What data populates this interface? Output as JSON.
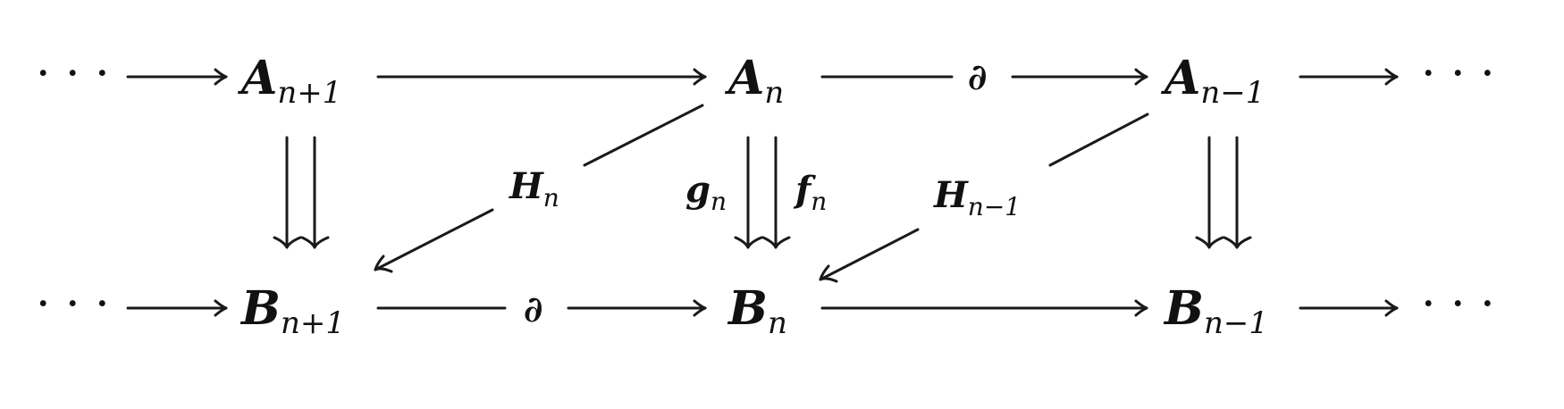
{
  "diagram": {
    "top_row": {
      "left_dots": "· · ·",
      "a_n_plus_1": {
        "base": "A",
        "sub": "n+1"
      },
      "a_n": {
        "base": "A",
        "sub": "n"
      },
      "a_n_minus_1": {
        "base": "A",
        "sub": "n−1"
      },
      "right_dots": "· · ·"
    },
    "bottom_row": {
      "left_dots": "· · ·",
      "b_n_plus_1": {
        "base": "B",
        "sub": "n+1"
      },
      "b_n": {
        "base": "B",
        "sub": "n"
      },
      "b_n_minus_1": {
        "base": "B",
        "sub": "n−1"
      },
      "right_dots": "· · ·"
    },
    "labels": {
      "boundary_top": "∂",
      "boundary_bottom": "∂",
      "h_n": {
        "base": "H",
        "sub": "n"
      },
      "h_n_minus_1": {
        "base": "H",
        "sub": "n−1"
      },
      "g_n": {
        "base": "g",
        "sub": "n"
      },
      "f_n": {
        "base": "f",
        "sub": "n"
      }
    }
  }
}
